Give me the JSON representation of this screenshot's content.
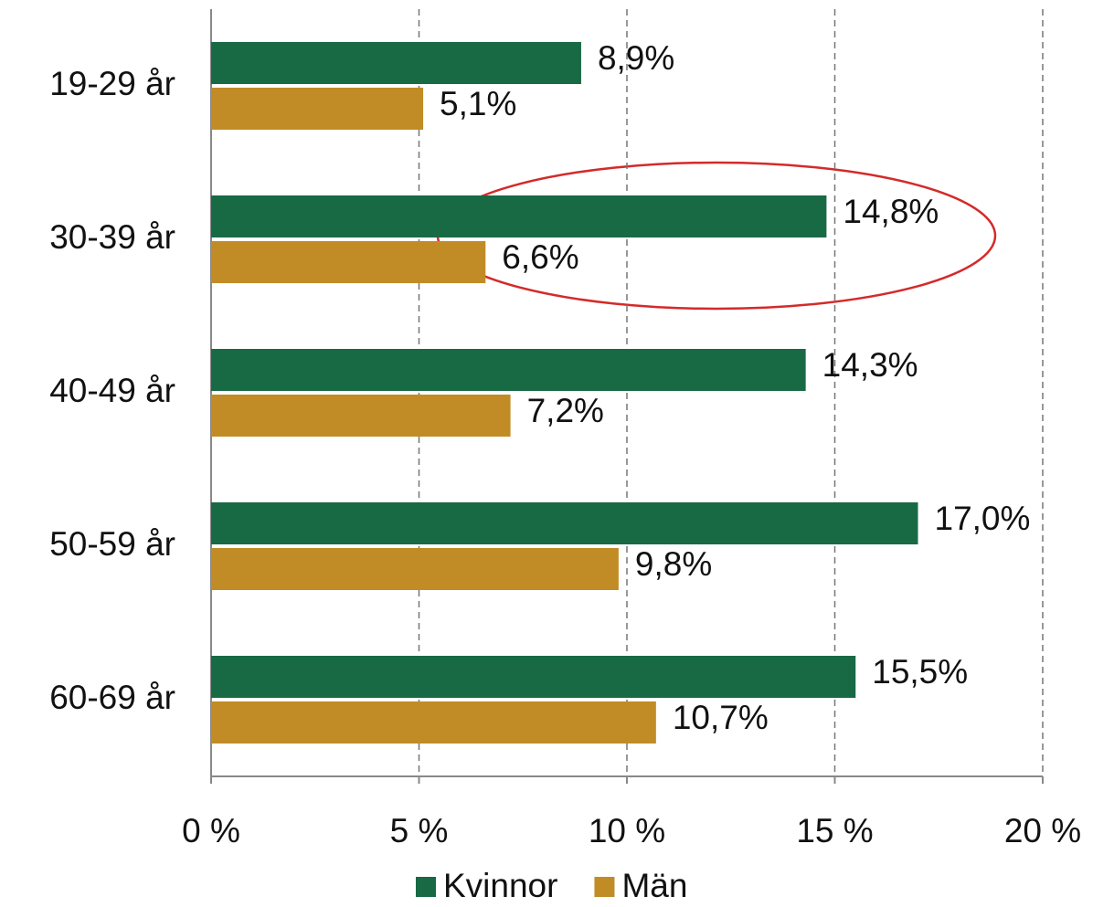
{
  "chart_data": {
    "type": "barh",
    "categories": [
      "19-29 år",
      "30-39 år",
      "40-49 år",
      "50-59 år",
      "60-69 år"
    ],
    "series": [
      {
        "name": "Kvinnor",
        "color": "#176a43",
        "values": [
          8.9,
          14.8,
          14.3,
          17.0,
          15.5
        ],
        "value_labels": [
          "8,9%",
          "14,8%",
          "14,3%",
          "17,0%",
          "15,5%"
        ]
      },
      {
        "name": "Män",
        "color": "#c18c25",
        "values": [
          5.1,
          6.6,
          7.2,
          9.8,
          10.7
        ],
        "value_labels": [
          "5,1%",
          "6,6%",
          "7,2%",
          "9,8%",
          "10,7%"
        ]
      }
    ],
    "xlim": [
      0,
      20
    ],
    "xticks": [
      {
        "value": 0,
        "label": "0 %"
      },
      {
        "value": 5,
        "label": "5 %"
      },
      {
        "value": 10,
        "label": "10 %"
      },
      {
        "value": 15,
        "label": "15 %"
      },
      {
        "value": 20,
        "label": "20 %"
      }
    ],
    "grid": true,
    "legend": "bottom"
  }
}
